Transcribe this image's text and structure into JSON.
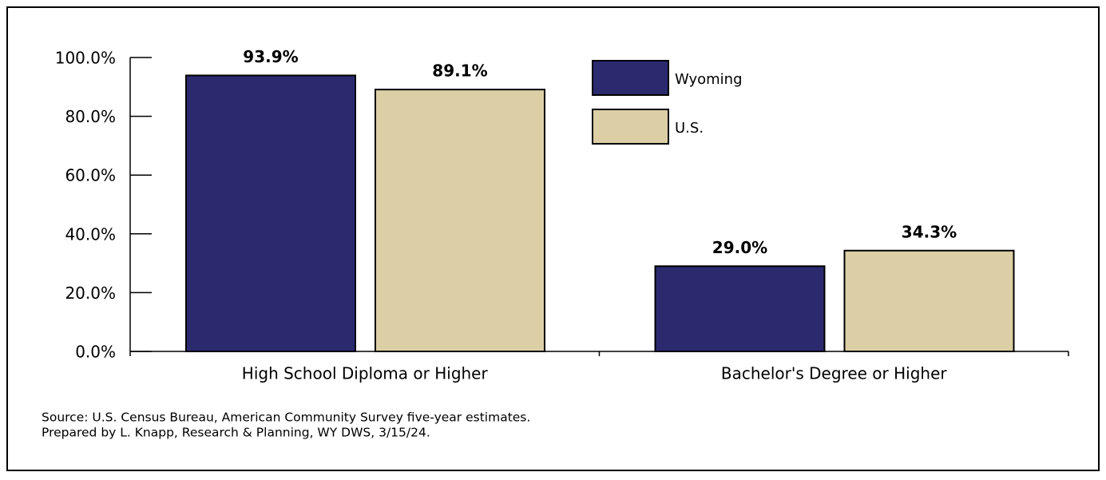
{
  "chart_data": {
    "type": "bar",
    "categories": [
      "High School Diploma or Higher",
      "Bachelor's Degree or Higher"
    ],
    "series": [
      {
        "name": "Wyoming",
        "color": "#2b2a6e",
        "values": [
          93.9,
          29.0
        ],
        "value_labels": [
          "93.9%",
          "29.0%"
        ]
      },
      {
        "name": "U.S.",
        "color": "#dccfa6",
        "values": [
          89.1,
          34.3
        ],
        "value_labels": [
          "89.1%",
          "34.3%"
        ]
      }
    ],
    "ylim": [
      0,
      100
    ],
    "yticks": [
      {
        "value": 0,
        "label": "0.0%"
      },
      {
        "value": 20,
        "label": "20.0%"
      },
      {
        "value": 40,
        "label": "40.0%"
      },
      {
        "value": 60,
        "label": "60.0%"
      },
      {
        "value": 80,
        "label": "80.0%"
      },
      {
        "value": 100,
        "label": "100.0%"
      }
    ],
    "legend": "top-right",
    "footnotes": [
      "Source: U.S. Census Bureau, American Community Survey five-year estimates.",
      "Prepared by L. Knapp, Research & Planning, WY DWS, 3/15/24."
    ]
  }
}
